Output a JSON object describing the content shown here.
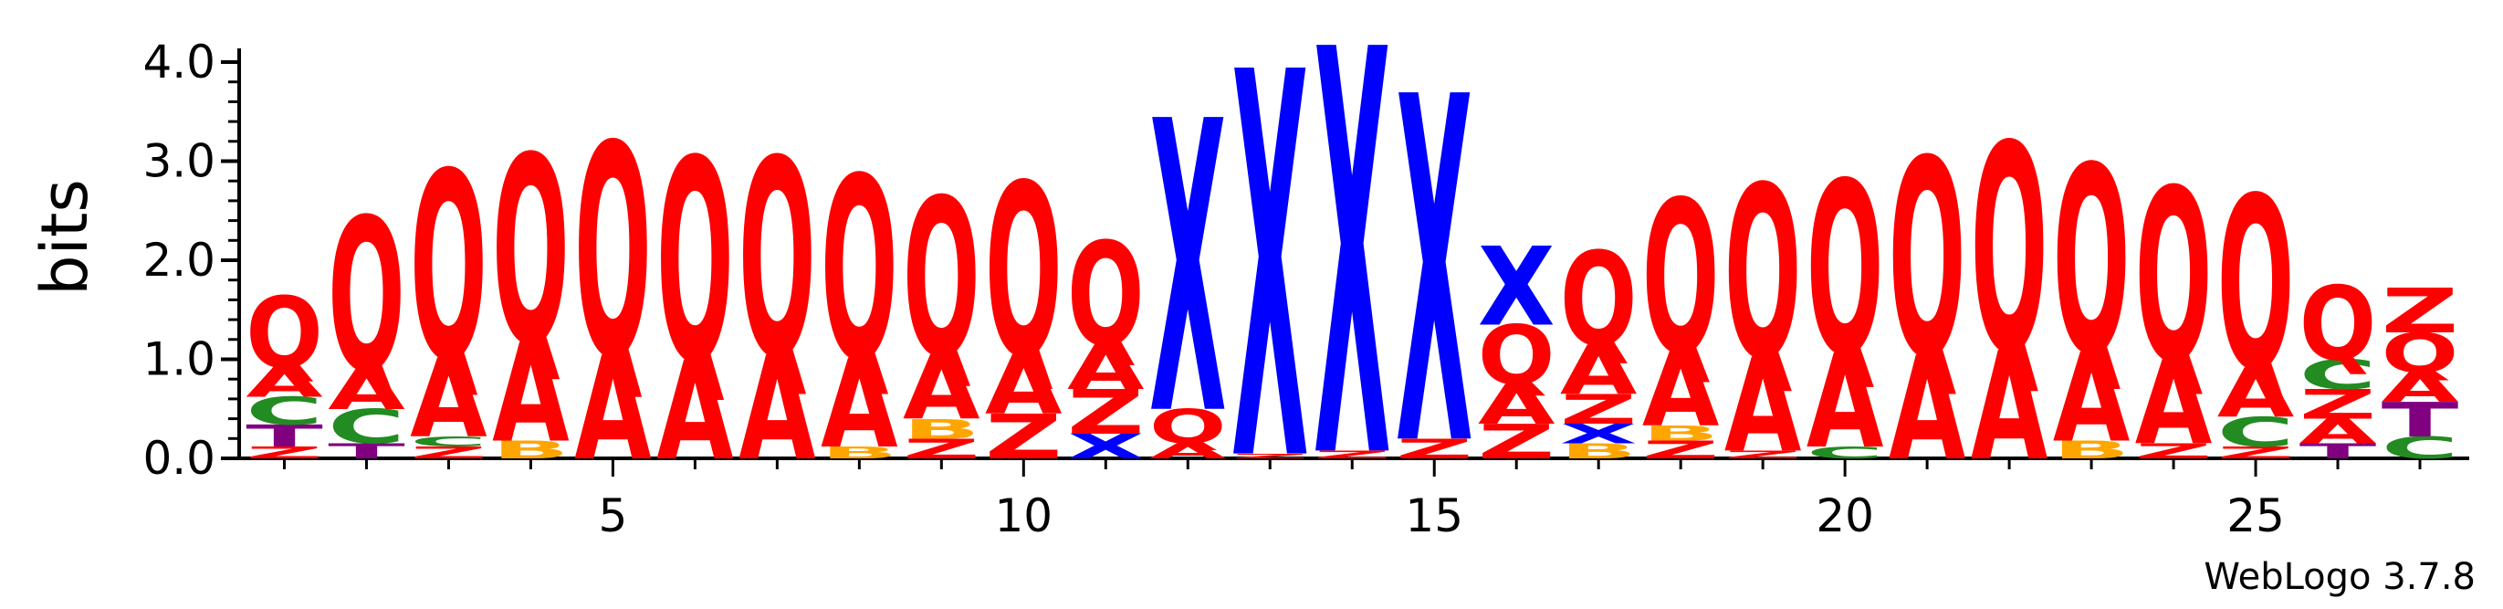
{
  "chart_data": {
    "type": "sequence-logo",
    "ylabel": "bits",
    "ylim": [
      0,
      4.0
    ],
    "yticks": [
      "0.0",
      "1.0",
      "2.0",
      "3.0",
      "4.0"
    ],
    "xticks": [
      5,
      10,
      15,
      20,
      25
    ],
    "credit": "WebLogo 3.7.8",
    "colors": {
      "Q": "#ff0000",
      "A": "#ff0000",
      "Z": "#ff0000",
      "X": "#0000ff",
      "C": "#228b22",
      "T": "#800080",
      "B": "#ffa500"
    },
    "positions": [
      {
        "pos": 1,
        "letters": [
          {
            "l": "Z",
            "h": 0.12
          },
          {
            "l": "T",
            "h": 0.22
          },
          {
            "l": "C",
            "h": 0.28
          },
          {
            "l": "A",
            "h": 0.3
          },
          {
            "l": "Q",
            "h": 0.72
          }
        ]
      },
      {
        "pos": 2,
        "letters": [
          {
            "l": "T",
            "h": 0.15
          },
          {
            "l": "C",
            "h": 0.35
          },
          {
            "l": "A",
            "h": 0.4
          },
          {
            "l": "Q",
            "h": 1.55
          }
        ]
      },
      {
        "pos": 3,
        "letters": [
          {
            "l": "Z",
            "h": 0.12
          },
          {
            "l": "C",
            "h": 0.1
          },
          {
            "l": "A",
            "h": 0.8
          },
          {
            "l": "Q",
            "h": 1.9
          }
        ]
      },
      {
        "pos": 4,
        "letters": [
          {
            "l": "B",
            "h": 0.18
          },
          {
            "l": "A",
            "h": 1.0
          },
          {
            "l": "Q",
            "h": 1.9
          }
        ]
      },
      {
        "pos": 5,
        "letters": [
          {
            "l": "A",
            "h": 1.05
          },
          {
            "l": "Q",
            "h": 2.15
          }
        ]
      },
      {
        "pos": 6,
        "letters": [
          {
            "l": "A",
            "h": 1.0
          },
          {
            "l": "Q",
            "h": 2.05
          }
        ]
      },
      {
        "pos": 7,
        "letters": [
          {
            "l": "A",
            "h": 1.05
          },
          {
            "l": "Q",
            "h": 2.0
          }
        ]
      },
      {
        "pos": 8,
        "letters": [
          {
            "l": "B",
            "h": 0.12
          },
          {
            "l": "A",
            "h": 0.9
          },
          {
            "l": "Q",
            "h": 1.85
          }
        ]
      },
      {
        "pos": 9,
        "letters": [
          {
            "l": "Z",
            "h": 0.2
          },
          {
            "l": "B",
            "h": 0.2
          },
          {
            "l": "A",
            "h": 0.65
          },
          {
            "l": "Q",
            "h": 1.6
          }
        ]
      },
      {
        "pos": 10,
        "letters": [
          {
            "l": "Z",
            "h": 0.45
          },
          {
            "l": "A",
            "h": 0.6
          },
          {
            "l": "Q",
            "h": 1.75
          }
        ]
      },
      {
        "pos": 11,
        "letters": [
          {
            "l": "X",
            "h": 0.25
          },
          {
            "l": "Z",
            "h": 0.45
          },
          {
            "l": "A",
            "h": 0.45
          },
          {
            "l": "Q",
            "h": 1.05
          }
        ]
      },
      {
        "pos": 12,
        "letters": [
          {
            "l": "A",
            "h": 0.15
          },
          {
            "l": "Q",
            "h": 0.35
          },
          {
            "l": "X",
            "h": 2.95
          }
        ]
      },
      {
        "pos": 13,
        "letters": [
          {
            "l": "Z",
            "h": 0.05
          },
          {
            "l": "X",
            "h": 3.9
          }
        ]
      },
      {
        "pos": 14,
        "letters": [
          {
            "l": "Z",
            "h": 0.08
          },
          {
            "l": "X",
            "h": 4.1
          }
        ]
      },
      {
        "pos": 15,
        "letters": [
          {
            "l": "Z",
            "h": 0.2
          },
          {
            "l": "X",
            "h": 3.5
          }
        ]
      },
      {
        "pos": 16,
        "letters": [
          {
            "l": "Z",
            "h": 0.35
          },
          {
            "l": "A",
            "h": 0.4
          },
          {
            "l": "Q",
            "h": 0.6
          },
          {
            "l": "X",
            "h": 0.8
          }
        ]
      },
      {
        "pos": 17,
        "letters": [
          {
            "l": "B",
            "h": 0.15
          },
          {
            "l": "X",
            "h": 0.2
          },
          {
            "l": "Z",
            "h": 0.3
          },
          {
            "l": "A",
            "h": 0.5
          },
          {
            "l": "Q",
            "h": 0.95
          }
        ]
      },
      {
        "pos": 18,
        "letters": [
          {
            "l": "Z",
            "h": 0.18
          },
          {
            "l": "B",
            "h": 0.15
          },
          {
            "l": "A",
            "h": 0.75
          },
          {
            "l": "Q",
            "h": 1.55
          }
        ]
      },
      {
        "pos": 19,
        "letters": [
          {
            "l": "Z",
            "h": 0.08
          },
          {
            "l": "A",
            "h": 0.95
          },
          {
            "l": "Q",
            "h": 1.75
          }
        ]
      },
      {
        "pos": 20,
        "letters": [
          {
            "l": "C",
            "h": 0.12
          },
          {
            "l": "A",
            "h": 0.95
          },
          {
            "l": "Q",
            "h": 1.75
          }
        ]
      },
      {
        "pos": 21,
        "letters": [
          {
            "l": "A",
            "h": 1.05
          },
          {
            "l": "Q",
            "h": 2.0
          }
        ]
      },
      {
        "pos": 22,
        "letters": [
          {
            "l": "A",
            "h": 1.1
          },
          {
            "l": "Q",
            "h": 2.1
          }
        ]
      },
      {
        "pos": 23,
        "letters": [
          {
            "l": "B",
            "h": 0.18
          },
          {
            "l": "A",
            "h": 0.9
          },
          {
            "l": "Q",
            "h": 1.9
          }
        ]
      },
      {
        "pos": 24,
        "letters": [
          {
            "l": "Z",
            "h": 0.15
          },
          {
            "l": "A",
            "h": 0.85
          },
          {
            "l": "Q",
            "h": 1.75
          }
        ]
      },
      {
        "pos": 25,
        "letters": [
          {
            "l": "Z",
            "h": 0.12
          },
          {
            "l": "C",
            "h": 0.3
          },
          {
            "l": "A",
            "h": 0.5
          },
          {
            "l": "Q",
            "h": 1.75
          }
        ]
      },
      {
        "pos": 26,
        "letters": [
          {
            "l": "T",
            "h": 0.15
          },
          {
            "l": "A",
            "h": 0.25
          },
          {
            "l": "Z",
            "h": 0.3
          },
          {
            "l": "C",
            "h": 0.3
          },
          {
            "l": "Q",
            "h": 0.75
          }
        ]
      },
      {
        "pos": 27,
        "letters": [
          {
            "l": "C",
            "h": 0.22
          },
          {
            "l": "T",
            "h": 0.35
          },
          {
            "l": "A",
            "h": 0.3
          },
          {
            "l": "Q",
            "h": 0.4
          },
          {
            "l": "Z",
            "h": 0.45
          }
        ]
      }
    ]
  }
}
